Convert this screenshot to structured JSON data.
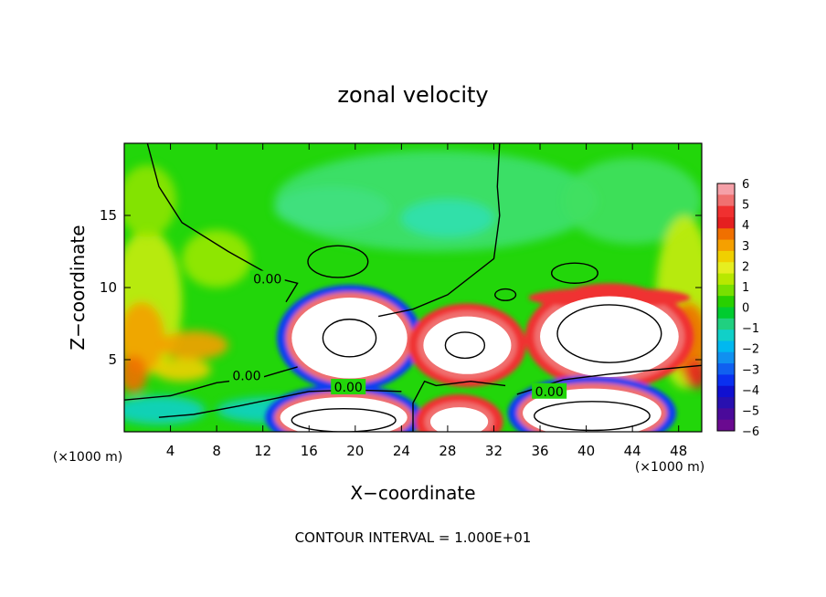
{
  "chart_data": {
    "type": "heatmap",
    "title": "zonal velocity",
    "xlabel": "X−coordinate",
    "ylabel": "Z−coordinate",
    "x_unit_left": "(×1000 m)",
    "x_unit_right": "(×1000 m)",
    "xlim": [
      0,
      50
    ],
    "ylim": [
      0,
      20
    ],
    "x_ticks": [
      4,
      8,
      12,
      16,
      20,
      24,
      28,
      32,
      36,
      40,
      44,
      48
    ],
    "y_ticks": [
      5,
      10,
      15
    ],
    "footer": "CONTOUR INTERVAL = 1.000E+01",
    "colorbar": {
      "levels": [
        6,
        5,
        4,
        3,
        2,
        1,
        0,
        -1,
        -2,
        -3,
        -4,
        -5,
        -6
      ],
      "colors": [
        "#f5a0a8",
        "#f07070",
        "#f03030",
        "#e52020",
        "#f07000",
        "#f5a000",
        "#f0d000",
        "#e6ee20",
        "#b8e800",
        "#78e000",
        "#28d000",
        "#00cc30",
        "#20d080",
        "#10d0c8",
        "#00b8f0",
        "#1090f0",
        "#1060f0",
        "#0a30f0",
        "#1010d0",
        "#2810b0",
        "#4a0a9a",
        "#6a0a90"
      ]
    },
    "contour_labels": [
      {
        "text": "0.00",
        "x": 12.4,
        "z": 10.6
      },
      {
        "text": "0.00",
        "x": 10.6,
        "z": 3.9
      },
      {
        "text": "0.00",
        "x": 19.4,
        "z": 3.1
      },
      {
        "text": "0.00",
        "x": 36.8,
        "z": 2.8
      }
    ],
    "features": {
      "wind_maxima": [
        {
          "x": 19.5,
          "z": 6.5,
          "rx": 5,
          "rz": 2.8,
          "sign": "positive"
        },
        {
          "x": 29.7,
          "z": 6.0,
          "rx": 3.8,
          "rz": 2.0,
          "sign": "positive"
        },
        {
          "x": 42.0,
          "z": 6.6,
          "rx": 6.0,
          "rz": 2.8,
          "sign": "positive"
        },
        {
          "x": 19.0,
          "z": 1.0,
          "rx": 5.5,
          "rz": 1.4,
          "sign": "positive"
        },
        {
          "x": 29.0,
          "z": 0.7,
          "rx": 2.5,
          "rz": 1.0,
          "sign": "positive"
        },
        {
          "x": 40.5,
          "z": 1.3,
          "rx": 6.0,
          "rz": 1.7,
          "sign": "positive"
        }
      ]
    }
  }
}
